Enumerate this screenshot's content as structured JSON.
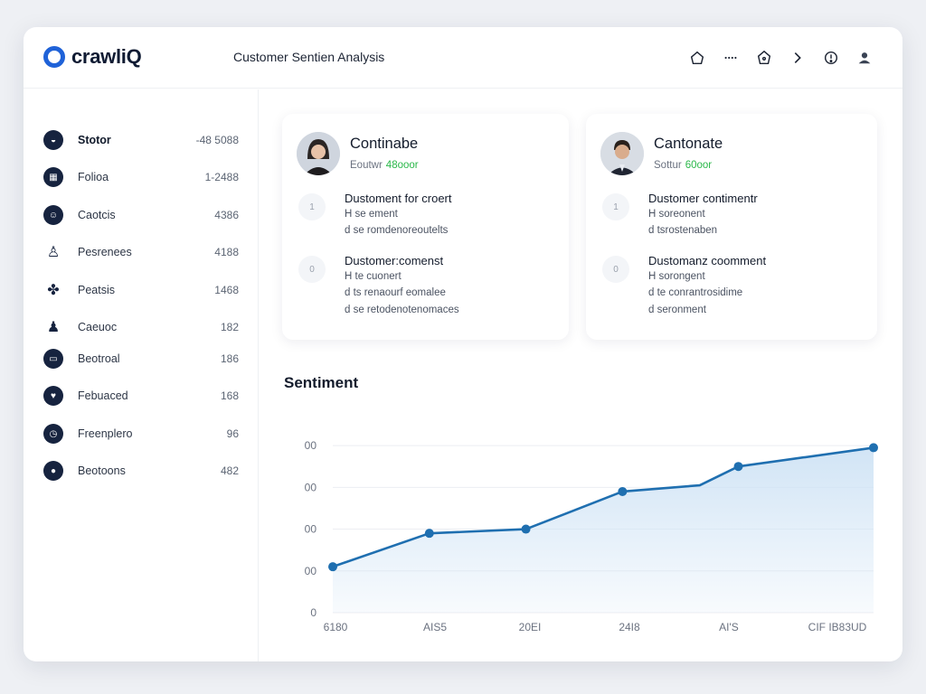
{
  "app": {
    "name": "crawliQ",
    "title": "Customer Sentien Analysis"
  },
  "header_icons": [
    "home-icon",
    "more-dots-icon",
    "shield-icon",
    "chevron-right-icon",
    "info-icon",
    "user-icon"
  ],
  "sidebar": {
    "items": [
      {
        "icon": "shield-icon",
        "label": "Stotor",
        "count": "-48 5088",
        "bold": true
      },
      {
        "icon": "calendar-icon",
        "label": "Folioa",
        "count": "1-2488"
      },
      {
        "icon": "face-icon",
        "label": "Caotcis",
        "count": "4386"
      },
      {
        "icon": "person-walk-icon",
        "label": "Pesrenees",
        "count": "4188"
      },
      {
        "icon": "people-icon",
        "label": "Peatsis",
        "count": "1468"
      },
      {
        "icon": "user-icon",
        "label": "Caeuoc",
        "count": "182"
      },
      {
        "icon": "box-icon",
        "label": "Beotroal",
        "count": "186"
      },
      {
        "icon": "heart-icon",
        "label": "Febuaced",
        "count": "168"
      },
      {
        "icon": "clock-icon",
        "label": "Freenplero",
        "count": "96"
      },
      {
        "icon": "user-circle-icon",
        "label": "Beotoons",
        "count": "482"
      }
    ]
  },
  "cards": [
    {
      "name": "Continabe",
      "sub_label": "Eoutwr",
      "score": "48ooor",
      "entries": [
        {
          "num": "1",
          "title": "Dustoment for croert",
          "lines": [
            "H se ement",
            "d se romdenoreoutelts"
          ]
        },
        {
          "num": "0",
          "title": "Dustomer:comenst",
          "lines": [
            "H te cuonert",
            "d ts renaourf eomalee",
            "d se retodenotenomaces"
          ]
        }
      ]
    },
    {
      "name": "Cantonate",
      "sub_label": "Sottur",
      "score": "60oor",
      "entries": [
        {
          "num": "1",
          "title": "Dustomer contimentr",
          "lines": [
            "H soreonent",
            "d tsrostenaben"
          ]
        },
        {
          "num": "0",
          "title": "Dustomanz coomment",
          "lines": [
            "H sorongent",
            "d te conrantrosidime",
            "d seronment"
          ]
        }
      ]
    }
  ],
  "chart_data": {
    "type": "area",
    "title": "Sentiment",
    "y_tick_labels": [
      "0",
      "00",
      "00",
      "00",
      "00"
    ],
    "x_tick_labels": [
      "6180",
      "AIS5",
      "20EI",
      "24I8",
      "AI'S",
      "CIF IB83UD"
    ],
    "x": [
      0,
      1,
      2,
      3,
      3.8,
      4.2,
      5.6
    ],
    "y": [
      1.1,
      1.9,
      2.0,
      2.9,
      3.05,
      3.5,
      3.95
    ],
    "markers": [
      true,
      true,
      true,
      true,
      false,
      true,
      true
    ],
    "ylim": [
      0,
      4.5
    ],
    "xlim": [
      0,
      5.6
    ],
    "grid": true,
    "line_color": "#1f6fb0",
    "fill_color": "#cfe3f5"
  }
}
